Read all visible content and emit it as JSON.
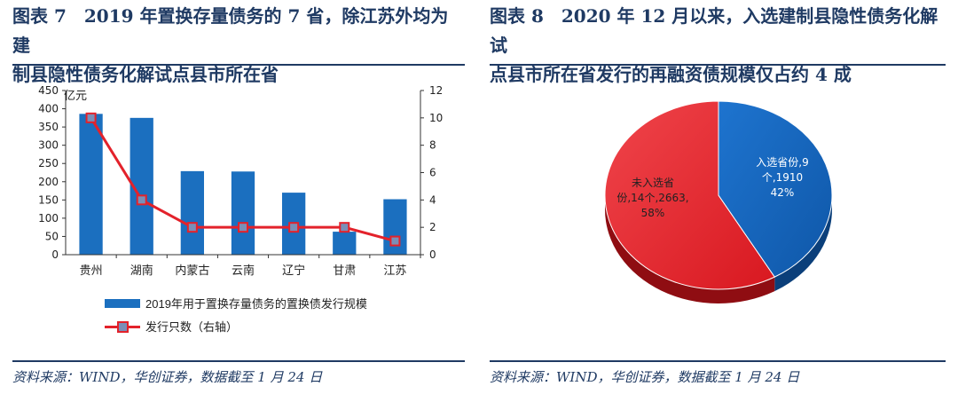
{
  "left": {
    "title_line1": "图表 7　2019 年置换存量债务的 7 省，除江苏外均为建",
    "title_line2": "制县隐性债务化解试点县市所在省",
    "source": "资料来源：WIND，华创证券，数据截至 1 月 24 日",
    "legend_bar": "2019年用于置换存量债务的置换债发行规模",
    "legend_line": "发行只数（右轴）"
  },
  "right": {
    "title_line1": "图表 8　2020 年 12 月以来，入选建制县隐性债务化解试",
    "title_line2": "点县市所在省发行的再融资债规模仅占约 4 成",
    "source": "资料来源：WIND，华创证券，数据截至 1 月 24 日",
    "slice_selected_l1": "入选省份,9",
    "slice_selected_l2": "个,1910",
    "slice_selected_l3": "42%",
    "slice_other_l1": "未入选省",
    "slice_other_l2": "份,14个,2663,",
    "slice_other_l3": "58%"
  },
  "colors": {
    "bar": "#1b6fbf",
    "line": "#e3222b",
    "marker": "#7a8fb8",
    "pie_blue": "#1565c0",
    "pie_red": "#e8202a"
  },
  "chart_data": [
    {
      "type": "bar",
      "title": "2019 年置换存量债务的 7 省，除江苏外均为建制县隐性债务化解试点县市所在省",
      "categories": [
        "贵州",
        "湖南",
        "内蒙古",
        "云南",
        "辽宁",
        "甘肃",
        "江苏"
      ],
      "ylabel": "亿元",
      "ylim": [
        0,
        450
      ],
      "yticks": [
        0,
        50,
        100,
        150,
        200,
        250,
        300,
        350,
        400,
        450
      ],
      "y2lim": [
        0,
        12
      ],
      "y2ticks": [
        0,
        2,
        4,
        6,
        8,
        10,
        12
      ],
      "series": [
        {
          "name": "2019年用于置换存量债务的置换债发行规模",
          "type": "bar",
          "axis": "left",
          "values": [
            386,
            375,
            229,
            228,
            170,
            63,
            152
          ]
        },
        {
          "name": "发行只数（右轴）",
          "type": "line",
          "axis": "right",
          "values": [
            10,
            4,
            2,
            2,
            2,
            2,
            1
          ]
        }
      ]
    },
    {
      "type": "pie",
      "title": "2020 年 12 月以来，入选建制县隐性债务化解试点县市所在省发行的再融资债规模仅占约 4 成",
      "categories": [
        "入选省份",
        "未入选省份"
      ],
      "counts": [
        9,
        14
      ],
      "values": [
        1910,
        2663
      ],
      "percent": [
        42,
        58
      ]
    }
  ]
}
